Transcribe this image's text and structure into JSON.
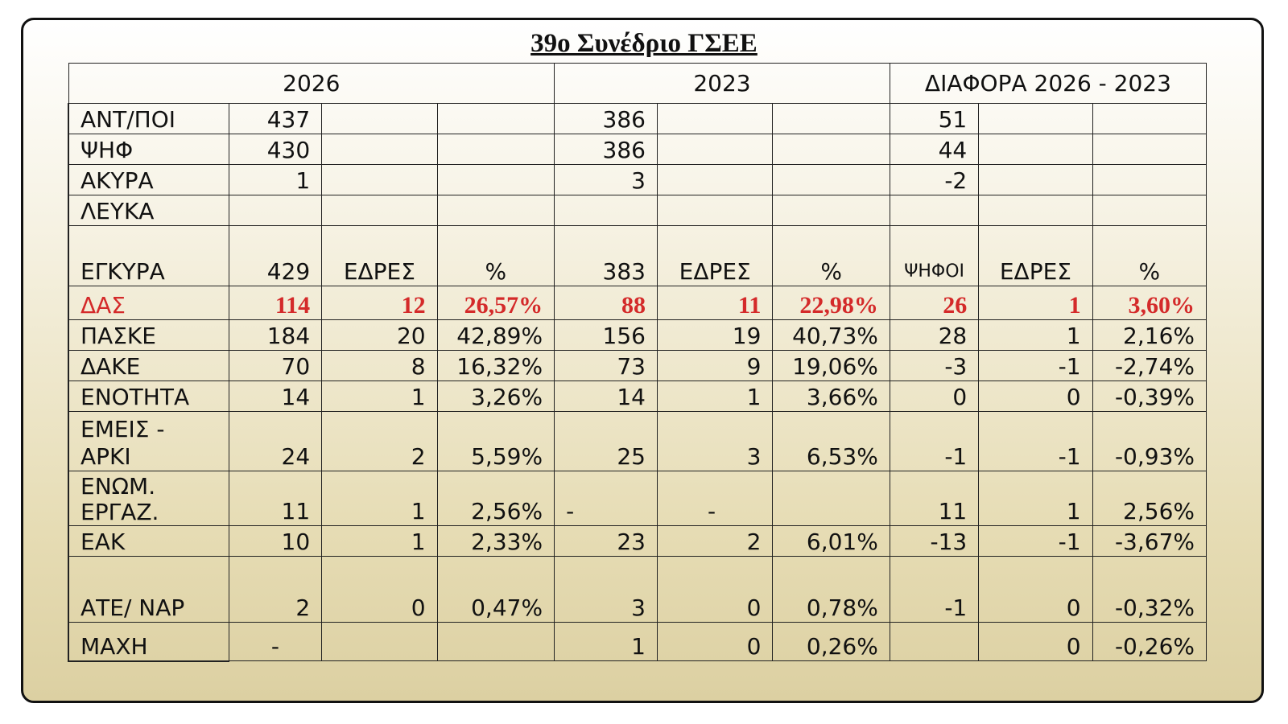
{
  "title": "39ο Συνέδριο ΓΣΕΕ",
  "header": {
    "year1": "2026",
    "year2": "2023",
    "diff": "ΔΙΑΦΟΡΑ 2026 - 2023"
  },
  "summary": [
    {
      "label": "ΑΝΤ/ΠΟΙ",
      "v26": "437",
      "v23": "386",
      "diff": "51"
    },
    {
      "label": "ΨΗΦ",
      "v26": "430",
      "v23": "386",
      "diff": "44"
    },
    {
      "label": "ΑΚΥΡΑ",
      "v26": "1",
      "v23": "3",
      "diff": "-2"
    },
    {
      "label": "ΛΕΥΚΑ",
      "v26": "",
      "v23": "",
      "diff": ""
    }
  ],
  "valid": {
    "label": "ΕΓΚΥΡΑ",
    "v26": "429",
    "seats26": "ΕΔΡΕΣ",
    "pct26": "%",
    "v23": "383",
    "seats23": "ΕΔΡΕΣ",
    "pct23": "%",
    "votes_diff": "ΨΗΦΟΙ",
    "seats_diff": "ΕΔΡΕΣ",
    "pct_diff": "%"
  },
  "factions": [
    {
      "label": "ΔΑΣ",
      "v26": "114",
      "s26": "12",
      "p26": "26,57%",
      "v23": "88",
      "s23": "11",
      "p23": "22,98%",
      "dv": "26",
      "ds": "1",
      "dp": "3,60%"
    },
    {
      "label": "ΠΑΣΚΕ",
      "v26": "184",
      "s26": "20",
      "p26": "42,89%",
      "v23": "156",
      "s23": "19",
      "p23": "40,73%",
      "dv": "28",
      "ds": "1",
      "dp": "2,16%"
    },
    {
      "label": "ΔΑΚΕ",
      "v26": "70",
      "s26": "8",
      "p26": "16,32%",
      "v23": "73",
      "s23": "9",
      "p23": "19,06%",
      "dv": "-3",
      "ds": "-1",
      "dp": "-2,74%"
    },
    {
      "label": "ΕΝΟΤΗΤΑ",
      "v26": "14",
      "s26": "1",
      "p26": "3,26%",
      "v23": "14",
      "s23": "1",
      "p23": "3,66%",
      "dv": "0",
      "ds": "0",
      "dp": "-0,39%"
    },
    {
      "label1": "ΕΜΕΙΣ -",
      "label2": "ΑΡΚΙ",
      "v26": "24",
      "s26": "2",
      "p26": "5,59%",
      "v23": "25",
      "s23": "3",
      "p23": "6,53%",
      "dv": "-1",
      "ds": "-1",
      "dp": "-0,93%"
    },
    {
      "label1": "ΕΝΩΜ.",
      "label2": "ΕΡΓΑΖ.",
      "v26": "11",
      "s26": "1",
      "p26": "2,56%",
      "v23": "-",
      "s23": "-",
      "p23": "",
      "dv": "11",
      "ds": "1",
      "dp": "2,56%"
    },
    {
      "label": "ΕΑΚ",
      "v26": "10",
      "s26": "1",
      "p26": "2,33%",
      "v23": "23",
      "s23": "2",
      "p23": "6,01%",
      "dv": "-13",
      "ds": "-1",
      "dp": "-3,67%"
    },
    {
      "label": "ΑΤΕ/ ΝΑΡ",
      "v26": "2",
      "s26": "0",
      "p26": "0,47%",
      "v23": "3",
      "s23": "0",
      "p23": "0,78%",
      "dv": "-1",
      "ds": "0",
      "dp": "-0,32%"
    },
    {
      "label": "ΜΑΧΗ",
      "v26": "-",
      "s26": "",
      "p26": "",
      "v23": "1",
      "s23": "0",
      "p23": "0,26%",
      "dv": "",
      "ds": "0",
      "dp": "-0,26%"
    }
  ],
  "colors": {
    "highlight_red": "#d42a2a",
    "panel_top": "#ffffff",
    "panel_bottom": "#dcd0a2",
    "border": "#111111"
  }
}
